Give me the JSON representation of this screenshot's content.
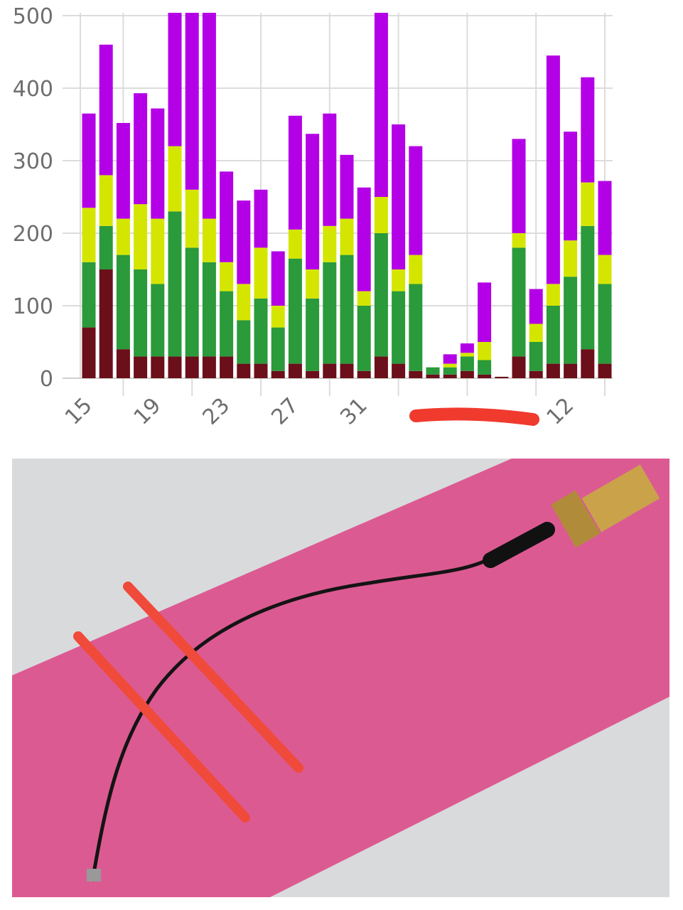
{
  "chart_data": {
    "type": "bar",
    "stacked": true,
    "categories": [
      "15",
      null,
      null,
      null,
      "19",
      null,
      null,
      null,
      "23",
      null,
      null,
      null,
      "27",
      null,
      null,
      null,
      "31",
      null,
      null,
      null,
      null,
      null,
      null,
      null,
      null,
      null,
      null,
      null,
      "12",
      null,
      null
    ],
    "series": [
      {
        "color": "#6b0f1a",
        "values": [
          70,
          150,
          40,
          30,
          30,
          30,
          30,
          30,
          30,
          20,
          20,
          10,
          20,
          10,
          20,
          20,
          10,
          30,
          20,
          10,
          5,
          5,
          10,
          5,
          2,
          30,
          10,
          20,
          20,
          40,
          20
        ]
      },
      {
        "color": "#2a9a3a",
        "values": [
          90,
          60,
          130,
          120,
          100,
          200,
          150,
          130,
          90,
          60,
          90,
          60,
          145,
          100,
          140,
          150,
          90,
          170,
          100,
          120,
          10,
          10,
          20,
          20,
          0,
          150,
          40,
          80,
          120,
          170,
          110
        ]
      },
      {
        "color": "#d4e600",
        "values": [
          75,
          70,
          50,
          90,
          90,
          90,
          80,
          60,
          40,
          50,
          70,
          30,
          40,
          40,
          50,
          50,
          20,
          50,
          30,
          40,
          0,
          5,
          5,
          25,
          0,
          20,
          25,
          30,
          50,
          60,
          40
        ]
      },
      {
        "color": "#b400e6",
        "values": [
          130,
          180,
          132,
          153,
          152,
          200,
          260,
          290,
          125,
          115,
          80,
          75,
          157,
          187,
          155,
          88,
          143,
          270,
          200,
          150,
          0,
          13,
          13,
          82,
          0,
          130,
          48,
          315,
          150,
          145,
          102
        ]
      }
    ],
    "ylim": [
      0,
      500
    ],
    "yticks": [
      0,
      100,
      200,
      300,
      400,
      500
    ],
    "grid": true
  }
}
